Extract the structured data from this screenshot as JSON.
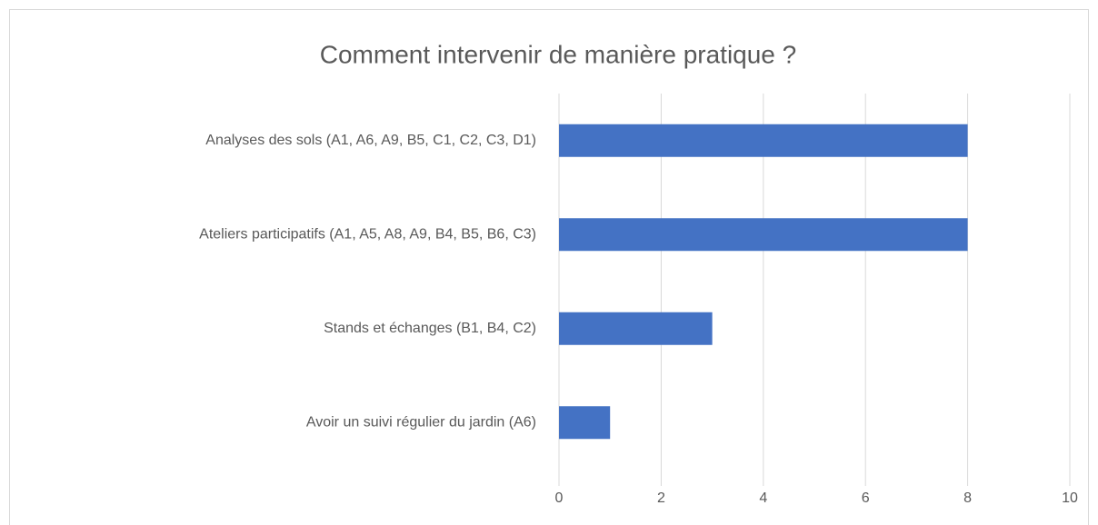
{
  "chart_data": {
    "type": "bar",
    "orientation": "horizontal",
    "title": "Comment intervenir de manière pratique ?",
    "categories": [
      "Analyses des sols (A1, A6, A9, B5, C1, C2, C3, D1)",
      "Ateliers participatifs (A1, A5, A8, A9, B4, B5, B6, C3)",
      "Stands et échanges (B1, B4, C2)",
      "Avoir un suivi régulier du jardin (A6)"
    ],
    "values": [
      8,
      8,
      3,
      1
    ],
    "color": "#4472c4",
    "xlim": [
      0,
      10
    ],
    "xticks": [
      0,
      2,
      4,
      6,
      8,
      10
    ],
    "grid": true
  }
}
